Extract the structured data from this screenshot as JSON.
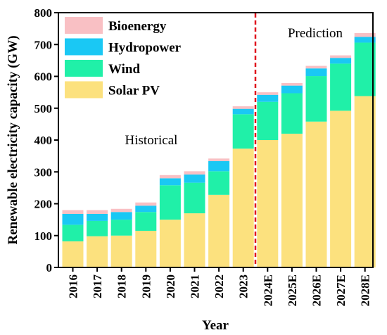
{
  "chart_data": {
    "type": "bar",
    "stacked": true,
    "categories": [
      "2016",
      "2017",
      "2018",
      "2019",
      "2020",
      "2021",
      "2022",
      "2023",
      "2024E",
      "2025E",
      "2026E",
      "2027E",
      "2028E"
    ],
    "series": [
      {
        "name": "Solar PV",
        "color": "#fce17e",
        "values": [
          82,
          98,
          100,
          115,
          150,
          170,
          228,
          373,
          400,
          420,
          458,
          492,
          538
        ]
      },
      {
        "name": "Wind",
        "color": "#20f0a8",
        "values": [
          52,
          48,
          50,
          59,
          108,
          96,
          74,
          108,
          120,
          127,
          143,
          148,
          168
        ]
      },
      {
        "name": "Hydropower",
        "color": "#1ac8f4",
        "values": [
          34,
          22,
          24,
          20,
          22,
          26,
          32,
          17,
          22,
          24,
          24,
          18,
          18
        ]
      },
      {
        "name": "Bioenergy",
        "color": "#f9c0c4",
        "values": [
          12,
          12,
          10,
          10,
          10,
          10,
          8,
          8,
          8,
          8,
          8,
          8,
          12
        ]
      }
    ],
    "xlabel": "Year",
    "ylabel": "Renewable electricity capacity (GW)",
    "ylim": [
      0,
      800
    ],
    "yticks": [
      0,
      100,
      200,
      300,
      400,
      500,
      600,
      700,
      800
    ],
    "annotations": {
      "historical": "Historical",
      "prediction": "Prediction"
    },
    "divider_color": "#e0141e",
    "legend_position": "top-left"
  }
}
